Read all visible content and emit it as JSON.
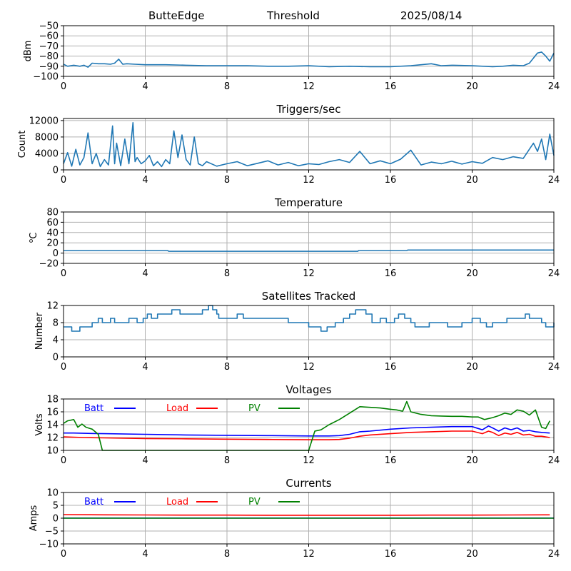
{
  "header": {
    "station": "ButteEdge",
    "mode": "Threshold",
    "date": "2025/08/14"
  },
  "chart_data": [
    {
      "type": "line",
      "title": "",
      "xlabel": "",
      "ylabel": "dBm",
      "xlim": [
        0,
        24
      ],
      "ylim": [
        -100,
        -50
      ],
      "xticks": [
        0,
        4,
        8,
        12,
        16,
        20,
        24
      ],
      "yticks": [
        -100,
        -90,
        -80,
        -70,
        -60,
        -50
      ],
      "grid": true,
      "series": [
        {
          "color": "#1f77b4",
          "x": [
            0,
            0.2,
            0.5,
            0.8,
            1.0,
            1.2,
            1.4,
            1.7,
            2.0,
            2.3,
            2.5,
            2.7,
            2.9,
            3.1,
            3.5,
            4.0,
            5.0,
            6.0,
            7.0,
            8.0,
            9.0,
            10.0,
            11.0,
            12.0,
            13.0,
            14.0,
            15.0,
            16.0,
            17.0,
            17.5,
            18.0,
            18.5,
            19.0,
            20.0,
            21.0,
            21.5,
            22.0,
            22.5,
            22.8,
            23.0,
            23.2,
            23.4,
            23.6,
            23.8,
            24.0
          ],
          "y": [
            -88,
            -90,
            -89,
            -90,
            -89,
            -91,
            -87,
            -87.5,
            -87.5,
            -88,
            -87,
            -83,
            -88,
            -87.5,
            -88,
            -88.5,
            -88.5,
            -89,
            -89.5,
            -89.5,
            -89.5,
            -90,
            -90,
            -89.5,
            -90.5,
            -90,
            -90.5,
            -90.5,
            -89.5,
            -88.5,
            -87.5,
            -89.5,
            -89,
            -89.5,
            -90.5,
            -90,
            -89,
            -89.5,
            -87,
            -82,
            -77,
            -76,
            -80,
            -85,
            -77
          ]
        }
      ]
    },
    {
      "type": "line",
      "title": "Triggers/sec",
      "xlabel": "",
      "ylabel": "Count",
      "xlim": [
        0,
        24
      ],
      "ylim": [
        0,
        12500
      ],
      "xticks": [
        0,
        4,
        8,
        12,
        16,
        20,
        24
      ],
      "yticks": [
        0,
        4000,
        8000,
        12000
      ],
      "grid": true,
      "series": [
        {
          "color": "#1f77b4",
          "x": [
            0,
            0.2,
            0.4,
            0.6,
            0.8,
            1.0,
            1.2,
            1.4,
            1.6,
            1.8,
            2.0,
            2.2,
            2.4,
            2.5,
            2.6,
            2.8,
            3.0,
            3.2,
            3.4,
            3.5,
            3.6,
            3.8,
            4.0,
            4.2,
            4.4,
            4.6,
            4.8,
            5.0,
            5.2,
            5.4,
            5.6,
            5.8,
            6.0,
            6.2,
            6.4,
            6.6,
            6.8,
            7.0,
            7.5,
            8.0,
            8.5,
            9.0,
            9.5,
            10.0,
            10.5,
            11.0,
            11.5,
            12.0,
            12.5,
            13.0,
            13.5,
            14.0,
            14.5,
            15.0,
            15.5,
            16.0,
            16.5,
            17.0,
            17.5,
            18.0,
            18.5,
            19.0,
            19.5,
            20.0,
            20.5,
            21.0,
            21.5,
            22.0,
            22.5,
            23.0,
            23.2,
            23.4,
            23.6,
            23.8,
            24.0
          ],
          "y": [
            1500,
            4200,
            900,
            5000,
            1200,
            3000,
            9000,
            1500,
            4000,
            800,
            2500,
            1200,
            10700,
            1500,
            6500,
            1000,
            7500,
            1500,
            11500,
            2000,
            3000,
            1500,
            2200,
            3500,
            1000,
            2000,
            800,
            2500,
            1500,
            9500,
            3000,
            8500,
            2500,
            1200,
            8000,
            1500,
            1000,
            2000,
            900,
            1500,
            2000,
            1000,
            1600,
            2200,
            1200,
            1800,
            1000,
            1500,
            1300,
            2000,
            2500,
            1800,
            4500,
            1500,
            2200,
            1500,
            2600,
            4800,
            1200,
            1900,
            1500,
            2100,
            1400,
            2000,
            1600,
            3000,
            2500,
            3200,
            2800,
            6500,
            4500,
            7500,
            2500,
            8700,
            3500
          ]
        }
      ]
    },
    {
      "type": "line",
      "title": "Temperature",
      "xlabel": "",
      "ylabel": "°C",
      "ylabel_sup": "o",
      "ylabel_base": "C",
      "xlim": [
        0,
        24
      ],
      "ylim": [
        -20,
        80
      ],
      "xticks": [
        0,
        4,
        8,
        12,
        16,
        20,
        24
      ],
      "yticks": [
        -20,
        0,
        20,
        40,
        60,
        80
      ],
      "grid": true,
      "series": [
        {
          "color": "#1f77b4",
          "x": [
            0,
            5.1,
            5.15,
            14.4,
            14.45,
            16.8,
            16.85,
            24
          ],
          "y": [
            5,
            5,
            3.5,
            3.5,
            5,
            5,
            6,
            6
          ]
        }
      ]
    },
    {
      "type": "line",
      "title": "Satellites Tracked",
      "xlabel": "",
      "ylabel": "Number",
      "xlim": [
        0,
        24
      ],
      "ylim": [
        0,
        12
      ],
      "xticks": [
        0,
        4,
        8,
        12,
        16,
        20,
        24
      ],
      "yticks": [
        0,
        4,
        8,
        12
      ],
      "grid": true,
      "series": [
        {
          "color": "#1f77b4",
          "step": true,
          "x": [
            0,
            0.4,
            0.6,
            0.8,
            1.4,
            1.7,
            1.9,
            2.1,
            2.3,
            2.5,
            3.2,
            3.6,
            3.9,
            4.1,
            4.3,
            4.6,
            5.0,
            5.3,
            5.7,
            6.3,
            6.8,
            7.1,
            7.3,
            7.5,
            7.6,
            8.0,
            8.5,
            8.8,
            9.3,
            10.0,
            10.5,
            11.0,
            12.0,
            12.6,
            12.9,
            13.3,
            13.7,
            14.0,
            14.3,
            14.8,
            15.1,
            15.5,
            15.8,
            16.2,
            16.4,
            16.7,
            17.0,
            17.2,
            17.9,
            18.6,
            18.8,
            19.5,
            20.0,
            20.4,
            20.7,
            21.0,
            21.4,
            21.7,
            22.6,
            22.8,
            23.4,
            23.6,
            23.8,
            24.0
          ],
          "y": [
            7,
            6,
            6,
            7,
            8,
            9,
            8,
            8,
            9,
            8,
            9,
            8,
            9,
            10,
            9,
            10,
            10,
            11,
            10,
            10,
            11,
            12,
            11,
            10,
            9,
            9,
            10,
            9,
            9,
            9,
            9,
            8,
            7,
            6,
            7,
            8,
            9,
            10,
            11,
            10,
            8,
            9,
            8,
            9,
            10,
            9,
            8,
            7,
            8,
            8,
            7,
            8,
            9,
            8,
            7,
            8,
            8,
            9,
            10,
            9,
            8,
            7,
            7,
            8
          ]
        }
      ]
    },
    {
      "type": "line",
      "title": "Voltages",
      "xlabel": "",
      "ylabel": "Volts",
      "xlim": [
        0,
        24
      ],
      "ylim": [
        10,
        18
      ],
      "xticks": [
        0,
        4,
        8,
        12,
        16,
        20,
        24
      ],
      "yticks": [
        10,
        12,
        14,
        16,
        18
      ],
      "grid": true,
      "legend": "inline-top",
      "series": [
        {
          "name": "Batt",
          "color": "#0000ff",
          "x": [
            0,
            0.5,
            1,
            2,
            4,
            6,
            8,
            10,
            12,
            13,
            13.5,
            14,
            14.5,
            15,
            16,
            17,
            18,
            19,
            20,
            20.5,
            20.8,
            21.0,
            21.3,
            21.6,
            21.9,
            22.2,
            22.5,
            22.8,
            23.1,
            23.4,
            23.8
          ],
          "y": [
            12.7,
            12.7,
            12.65,
            12.6,
            12.5,
            12.4,
            12.35,
            12.3,
            12.25,
            12.25,
            12.3,
            12.5,
            12.9,
            13.0,
            13.3,
            13.5,
            13.6,
            13.7,
            13.7,
            13.2,
            13.8,
            13.5,
            13.0,
            13.5,
            13.2,
            13.5,
            13.0,
            13.1,
            12.9,
            12.8,
            12.7
          ]
        },
        {
          "name": "Load",
          "color": "#ff0000",
          "x": [
            0,
            1,
            2,
            4,
            6,
            8,
            10,
            12,
            13,
            13.5,
            14,
            14.5,
            15,
            16,
            17,
            18,
            19,
            20,
            20.5,
            20.8,
            21.0,
            21.3,
            21.6,
            21.9,
            22.2,
            22.5,
            22.8,
            23.1,
            23.4,
            23.8
          ],
          "y": [
            12.1,
            12.0,
            11.95,
            11.85,
            11.8,
            11.75,
            11.7,
            11.65,
            11.65,
            11.7,
            11.9,
            12.2,
            12.4,
            12.6,
            12.8,
            12.9,
            13.0,
            13.0,
            12.6,
            13.0,
            12.8,
            12.3,
            12.7,
            12.5,
            12.8,
            12.4,
            12.5,
            12.2,
            12.2,
            12.0
          ]
        },
        {
          "name": "PV",
          "color": "#008000",
          "x": [
            0,
            0.2,
            0.5,
            0.7,
            0.9,
            1.1,
            1.4,
            1.7,
            1.9,
            11.95,
            12.0,
            12.3,
            12.6,
            13.0,
            13.5,
            14.0,
            14.5,
            15.0,
            15.5,
            16.0,
            16.3,
            16.6,
            16.8,
            17.0,
            17.5,
            18.0,
            18.5,
            19.0,
            19.5,
            20.0,
            20.3,
            20.6,
            21.0,
            21.3,
            21.6,
            21.9,
            22.2,
            22.5,
            22.8,
            23.1,
            23.4,
            23.6,
            23.8
          ],
          "y": [
            14.2,
            14.6,
            14.8,
            13.6,
            14.1,
            13.6,
            13.3,
            12.5,
            10.0,
            10.0,
            10.0,
            13.0,
            13.2,
            14.0,
            14.8,
            15.8,
            16.8,
            16.7,
            16.6,
            16.4,
            16.3,
            16.1,
            17.6,
            16.0,
            15.6,
            15.4,
            15.35,
            15.3,
            15.3,
            15.2,
            15.2,
            14.8,
            15.1,
            15.4,
            15.8,
            15.6,
            16.3,
            16.1,
            15.5,
            16.3,
            13.6,
            13.4,
            14.6
          ]
        }
      ]
    },
    {
      "type": "line",
      "title": "Currents",
      "xlabel": "",
      "ylabel": "Amps",
      "xlim": [
        0,
        24
      ],
      "ylim": [
        -10,
        10
      ],
      "xticks": [
        0,
        4,
        8,
        12,
        16,
        20,
        24
      ],
      "yticks": [
        -10,
        -5,
        0,
        5,
        10
      ],
      "grid": true,
      "legend": "inline-top",
      "series": [
        {
          "name": "Batt",
          "color": "#0000ff",
          "x": [
            0,
            24
          ],
          "y": [
            0.05,
            0.05
          ]
        },
        {
          "name": "Load",
          "color": "#ff0000",
          "x": [
            0,
            2,
            4,
            6,
            8,
            10,
            12,
            14,
            16,
            18,
            20,
            22,
            23.8
          ],
          "y": [
            1.4,
            1.3,
            1.25,
            1.2,
            1.2,
            1.15,
            1.15,
            1.15,
            1.15,
            1.2,
            1.2,
            1.25,
            1.3
          ]
        },
        {
          "name": "PV",
          "color": "#008000",
          "x": [
            0,
            24
          ],
          "y": [
            0,
            0
          ]
        }
      ]
    }
  ]
}
